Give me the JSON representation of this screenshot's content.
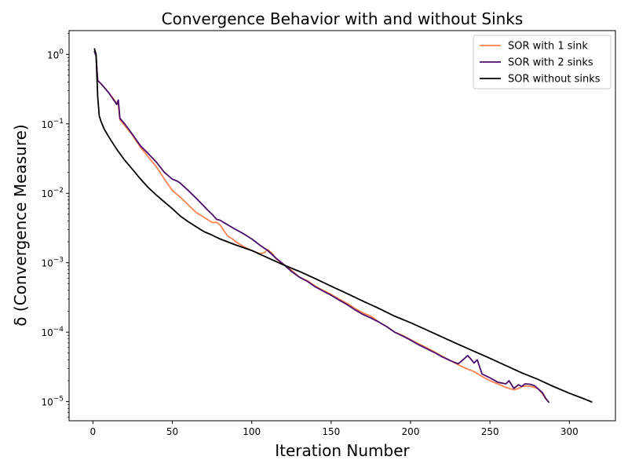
{
  "chart_data": {
    "type": "line",
    "title": "Convergence Behavior with and without Sinks",
    "xlabel": "Iteration Number",
    "ylabel": "δ (Convergence Measure)",
    "xlim": [
      -15,
      329
    ],
    "ylim": [
      5.3e-06,
      2.2
    ],
    "yscale": "log",
    "grid": false,
    "legend_position": "top-right",
    "xticks": [
      0,
      50,
      100,
      150,
      200,
      250,
      300
    ],
    "yticks": [
      {
        "value": 1,
        "base": "10",
        "exp": "0"
      },
      {
        "value": 0.1,
        "base": "10",
        "exp": "−1"
      },
      {
        "value": 0.01,
        "base": "10",
        "exp": "−2"
      },
      {
        "value": 0.001,
        "base": "10",
        "exp": "−3"
      },
      {
        "value": 0.0001,
        "base": "10",
        "exp": "−4"
      },
      {
        "value": 1e-05,
        "base": "10",
        "exp": "−5"
      }
    ],
    "series": [
      {
        "name": "SOR with 1 sink",
        "color": "#fb8350",
        "x": [
          1,
          2,
          3,
          5,
          10,
          15,
          16,
          17,
          20,
          25,
          30,
          35,
          40,
          45,
          50,
          55,
          60,
          65,
          70,
          75,
          78,
          80,
          82,
          85,
          88,
          90,
          95,
          100,
          105,
          108,
          110,
          113,
          115,
          120,
          125,
          130,
          135,
          140,
          145,
          150,
          155,
          160,
          165,
          170,
          175,
          180,
          185,
          190,
          195,
          200,
          205,
          210,
          215,
          220,
          225,
          230,
          235,
          240,
          245,
          250,
          255,
          260,
          265,
          268,
          270,
          273,
          276,
          280,
          283,
          285,
          287
        ],
        "values": [
          1.1,
          0.95,
          0.42,
          0.38,
          0.28,
          0.2,
          0.19,
          0.115,
          0.095,
          0.068,
          0.046,
          0.033,
          0.024,
          0.016,
          0.011,
          0.0088,
          0.0068,
          0.0053,
          0.0045,
          0.0038,
          0.0038,
          0.0035,
          0.003,
          0.0024,
          0.0022,
          0.002,
          0.0017,
          0.0015,
          0.00135,
          0.0014,
          0.00155,
          0.00135,
          0.00115,
          0.00095,
          0.00078,
          0.00062,
          0.00055,
          0.00046,
          0.0004,
          0.00035,
          0.0003,
          0.00026,
          0.00022,
          0.00019,
          0.00017,
          0.00014,
          0.00012,
          0.0001,
          9e-05,
          7.8e-05,
          6.8e-05,
          6e-05,
          5.2e-05,
          4.5e-05,
          3.9e-05,
          3.4e-05,
          3e-05,
          2.7e-05,
          2.3e-05,
          2e-05,
          1.8e-05,
          1.6e-05,
          1.48e-05,
          1.55e-05,
          1.65e-05,
          1.68e-05,
          1.65e-05,
          1.55e-05,
          1.3e-05,
          1.1e-05,
          9.9e-06
        ]
      },
      {
        "name": "SOR with 2 sinks",
        "color": "#4a0c6b",
        "x": [
          1,
          2,
          3,
          5,
          10,
          15,
          16,
          17,
          20,
          25,
          30,
          35,
          40,
          45,
          50,
          53,
          55,
          60,
          65,
          70,
          72,
          75,
          78,
          80,
          85,
          90,
          95,
          100,
          105,
          110,
          115,
          120,
          125,
          130,
          135,
          140,
          145,
          150,
          155,
          160,
          165,
          170,
          175,
          180,
          185,
          190,
          195,
          200,
          205,
          210,
          215,
          220,
          225,
          230,
          233,
          236,
          238,
          240,
          242,
          245,
          250,
          255,
          260,
          262,
          265,
          268,
          270,
          272,
          275,
          278,
          280,
          283,
          285,
          287
        ],
        "values": [
          1.1,
          0.95,
          0.42,
          0.38,
          0.28,
          0.19,
          0.22,
          0.12,
          0.1,
          0.07,
          0.048,
          0.037,
          0.028,
          0.02,
          0.016,
          0.015,
          0.014,
          0.011,
          0.0085,
          0.0065,
          0.0058,
          0.005,
          0.0042,
          0.0041,
          0.0035,
          0.003,
          0.0026,
          0.0022,
          0.0018,
          0.0015,
          0.00118,
          0.00095,
          0.00075,
          0.00062,
          0.00054,
          0.00045,
          0.00039,
          0.00034,
          0.00029,
          0.00025,
          0.00021,
          0.00018,
          0.00016,
          0.00014,
          0.00012,
          0.0001,
          8.8e-05,
          7.7e-05,
          6.6e-05,
          5.8e-05,
          5.1e-05,
          4.4e-05,
          3.9e-05,
          3.5e-05,
          4e-05,
          4.6e-05,
          4.1e-05,
          3.6e-05,
          4e-05,
          2.5e-05,
          2.2e-05,
          1.9e-05,
          1.8e-05,
          2e-05,
          1.55e-05,
          1.75e-05,
          1.65e-05,
          1.8e-05,
          1.78e-05,
          1.7e-05,
          1.55e-05,
          1.35e-05,
          1.12e-05,
          9.8e-06
        ]
      },
      {
        "name": "SOR without sinks",
        "color": "#000000",
        "x": [
          1,
          2,
          3,
          4,
          5,
          7,
          10,
          15,
          20,
          25,
          30,
          35,
          40,
          45,
          50,
          55,
          60,
          65,
          70,
          75,
          80,
          90,
          100,
          110,
          120,
          130,
          140,
          150,
          160,
          170,
          180,
          190,
          200,
          210,
          220,
          230,
          240,
          250,
          260,
          270,
          280,
          290,
          300,
          310,
          314
        ],
        "values": [
          1.2,
          1.0,
          0.25,
          0.13,
          0.11,
          0.085,
          0.065,
          0.043,
          0.03,
          0.022,
          0.016,
          0.012,
          0.0094,
          0.0075,
          0.006,
          0.0047,
          0.0039,
          0.0033,
          0.0028,
          0.0025,
          0.0022,
          0.0018,
          0.0015,
          0.00118,
          0.00093,
          0.00075,
          0.00059,
          0.00046,
          0.00036,
          0.00028,
          0.00022,
          0.00017,
          0.000137,
          0.000108,
          8.5e-05,
          6.7e-05,
          5.3e-05,
          4.2e-05,
          3.3e-05,
          2.6e-05,
          2.1e-05,
          1.65e-05,
          1.32e-05,
          1.08e-05,
          9.9e-06
        ]
      }
    ]
  }
}
